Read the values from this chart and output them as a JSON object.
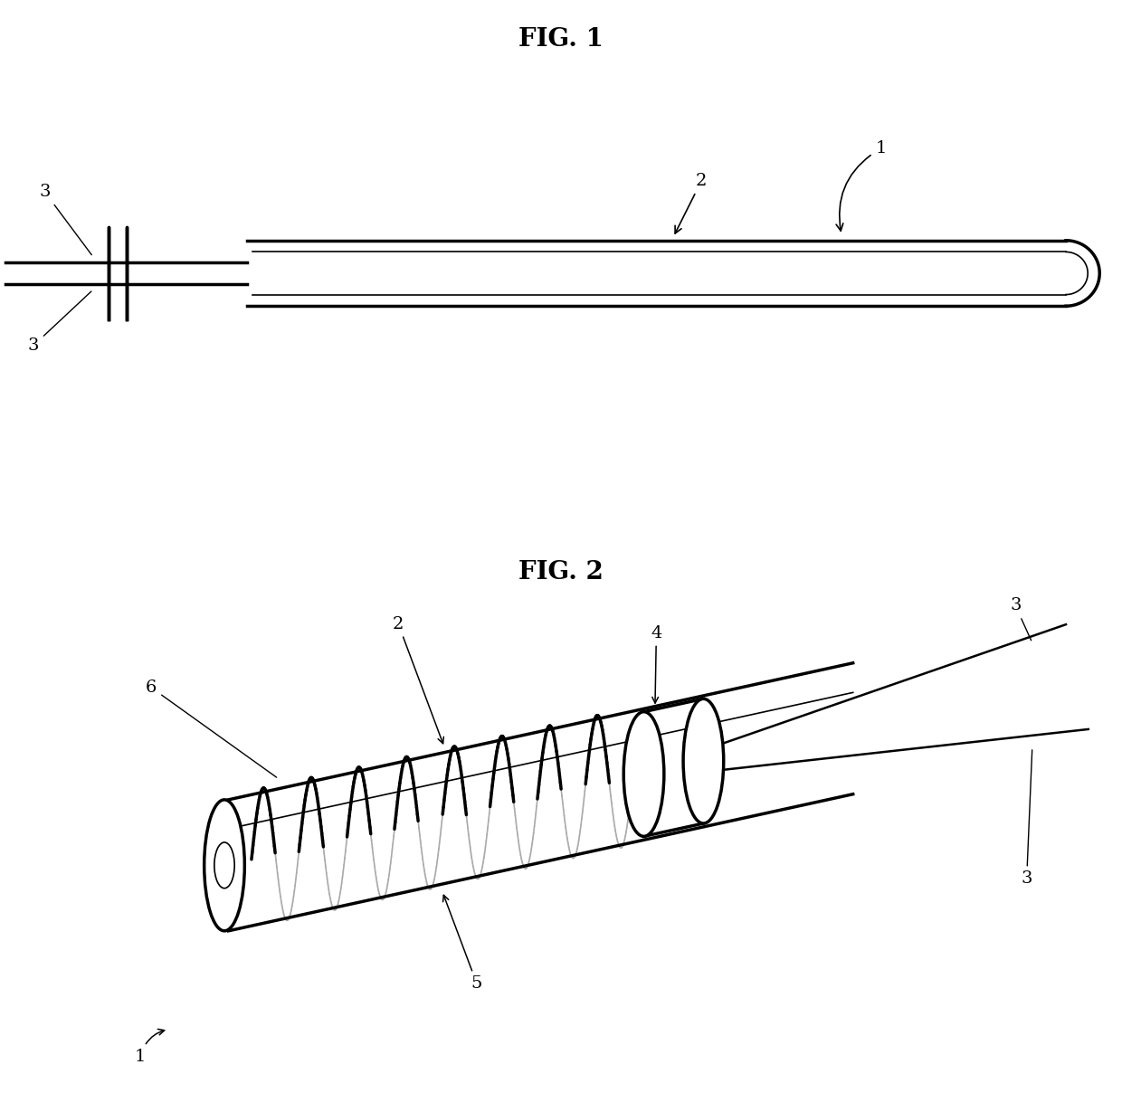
{
  "fig1_title": "FIG. 1",
  "fig2_title": "FIG. 2",
  "bg_color": "#ffffff",
  "line_color": "#000000",
  "lw_thick": 2.5,
  "lw_thin": 1.2,
  "lw_wire": 1.8
}
